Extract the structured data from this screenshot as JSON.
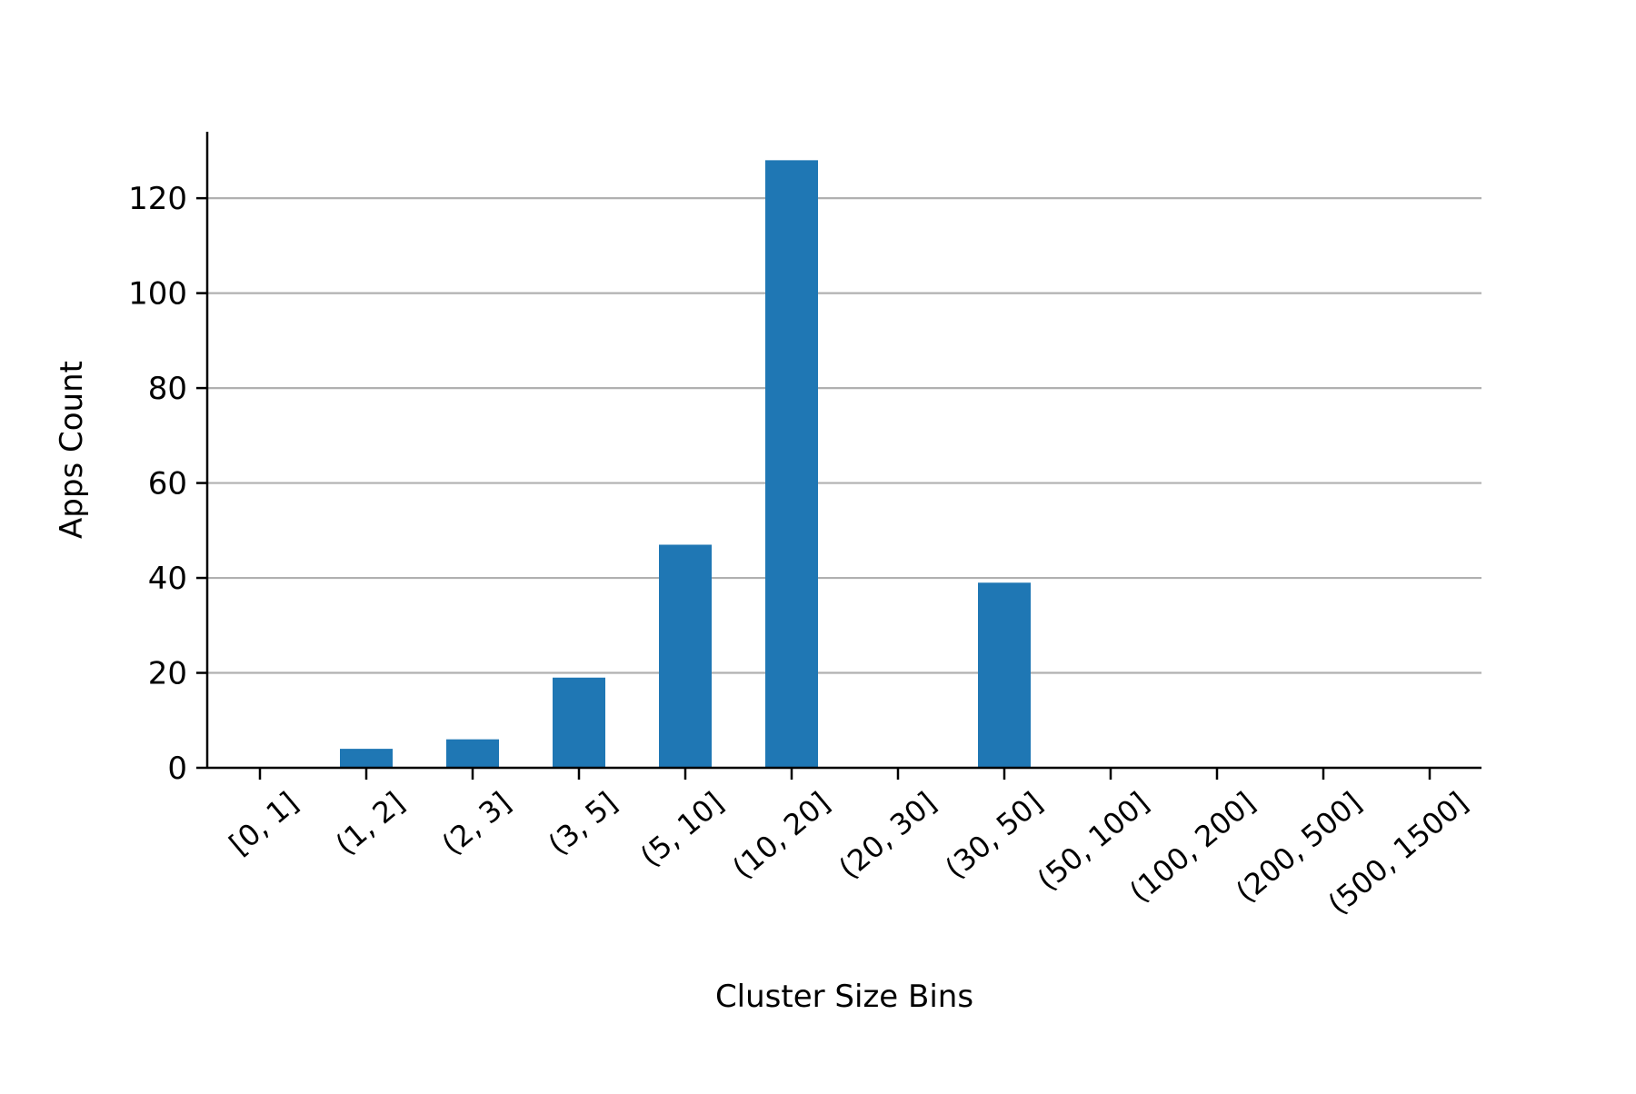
{
  "chart_data": {
    "type": "bar",
    "title": "",
    "xlabel": "Cluster Size Bins",
    "ylabel": "Apps Count",
    "categories": [
      "[0, 1]",
      "(1, 2]",
      "(2, 3]",
      "(3, 5]",
      "(5, 10]",
      "(10, 20]",
      "(20, 30]",
      "(30, 50]",
      "(50, 100]",
      "(100, 200]",
      "(200, 500]",
      "(500, 1500]"
    ],
    "values": [
      0,
      4,
      6,
      19,
      47,
      128,
      0,
      39,
      0,
      0,
      0,
      0
    ],
    "ylim": [
      0,
      134
    ],
    "yticks": [
      0,
      20,
      40,
      60,
      80,
      100,
      120
    ],
    "grid": "horizontal",
    "legend": "none",
    "colors": {
      "bar": "#1f77b4",
      "grid": "#b0b0b0",
      "axis": "#000000"
    }
  }
}
